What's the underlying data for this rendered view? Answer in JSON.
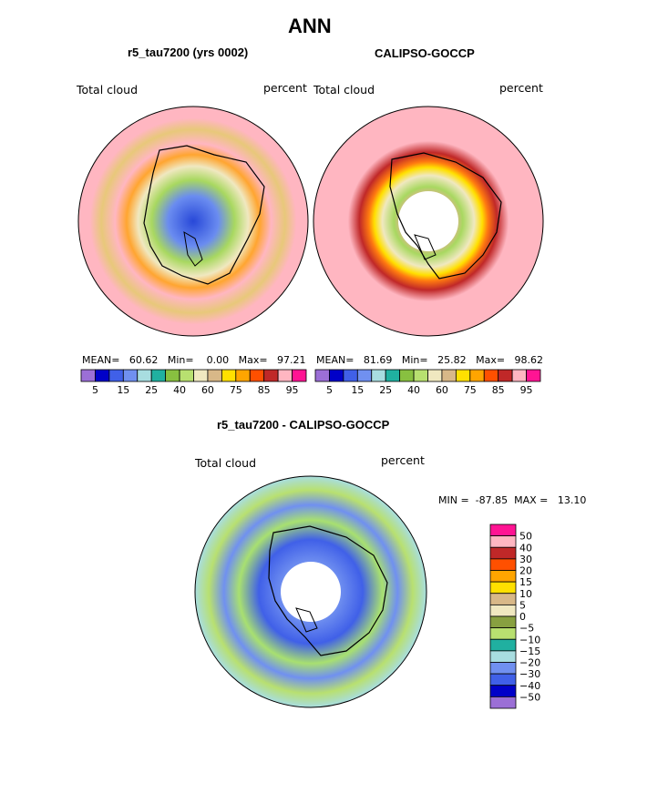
{
  "figure": {
    "title": "ANN",
    "field_label": "Total cloud",
    "units_label": "percent"
  },
  "chart_data": [
    {
      "type": "heatmap",
      "projection": "south-polar-stereographic",
      "title": "r5_tau7200 (yrs 0002)",
      "field": "Total cloud",
      "units": "percent",
      "stats_line": "MEAN=   60.62   Min=    0.00   Max=   97.21",
      "stats": {
        "mean": 60.62,
        "min": 0.0,
        "max": 97.21
      },
      "colorbar": {
        "orientation": "horizontal",
        "levels": [
          5,
          10,
          15,
          20,
          25,
          30,
          40,
          50,
          60,
          70,
          75,
          80,
          85,
          90,
          95
        ],
        "tick_labels": [
          "5",
          "15",
          "25",
          "40",
          "60",
          "75",
          "85",
          "95"
        ],
        "colors": [
          "#9b6fd6",
          "#0000c8",
          "#4060e8",
          "#7090f0",
          "#a8dde0",
          "#20b0a0",
          "#88c040",
          "#b8e070",
          "#f0e8c0",
          "#d8b888",
          "#ffe000",
          "#ffa500",
          "#ff5000",
          "#c02828",
          "#ffb6c1",
          "#ff1493"
        ]
      }
    },
    {
      "type": "heatmap",
      "projection": "south-polar-stereographic",
      "title": "CALIPSO-GOCCP",
      "field": "Total cloud",
      "units": "percent",
      "stats_line": "MEAN=   81.69   Min=   25.82   Max=   98.62",
      "stats": {
        "mean": 81.69,
        "min": 25.82,
        "max": 98.62
      },
      "colorbar": {
        "orientation": "horizontal",
        "levels": [
          5,
          10,
          15,
          20,
          25,
          30,
          40,
          50,
          60,
          70,
          75,
          80,
          85,
          90,
          95
        ],
        "tick_labels": [
          "5",
          "15",
          "25",
          "40",
          "60",
          "75",
          "85",
          "95"
        ],
        "colors": [
          "#9b6fd6",
          "#0000c8",
          "#4060e8",
          "#7090f0",
          "#a8dde0",
          "#20b0a0",
          "#88c040",
          "#b8e070",
          "#f0e8c0",
          "#d8b888",
          "#ffe000",
          "#ffa500",
          "#ff5000",
          "#c02828",
          "#ffb6c1",
          "#ff1493"
        ]
      }
    },
    {
      "type": "heatmap",
      "projection": "south-polar-stereographic",
      "title": "r5_tau7200 - CALIPSO-GOCCP",
      "field": "Total cloud",
      "units": "percent",
      "stats_line": "MIN =  -87.85  MAX =   13.10",
      "stats": {
        "min": -87.85,
        "max": 13.1
      },
      "colorbar": {
        "orientation": "vertical",
        "levels": [
          50,
          40,
          30,
          20,
          15,
          10,
          5,
          0,
          -5,
          -10,
          -15,
          -20,
          -30,
          -40,
          -50
        ],
        "tick_labels": [
          "50",
          "40",
          "30",
          "20",
          "15",
          "10",
          "5",
          "0",
          "−5",
          "−10",
          "−15",
          "−20",
          "−30",
          "−40",
          "−50"
        ],
        "colors": [
          "#ff1493",
          "#ffb6c1",
          "#c02828",
          "#ff5000",
          "#ffa500",
          "#ffe000",
          "#d8b888",
          "#f0e8c0",
          "#88a040",
          "#b8e070",
          "#20b0a0",
          "#a8dde0",
          "#7090f0",
          "#4060e8",
          "#0000c8",
          "#9b6fd6"
        ]
      }
    }
  ]
}
